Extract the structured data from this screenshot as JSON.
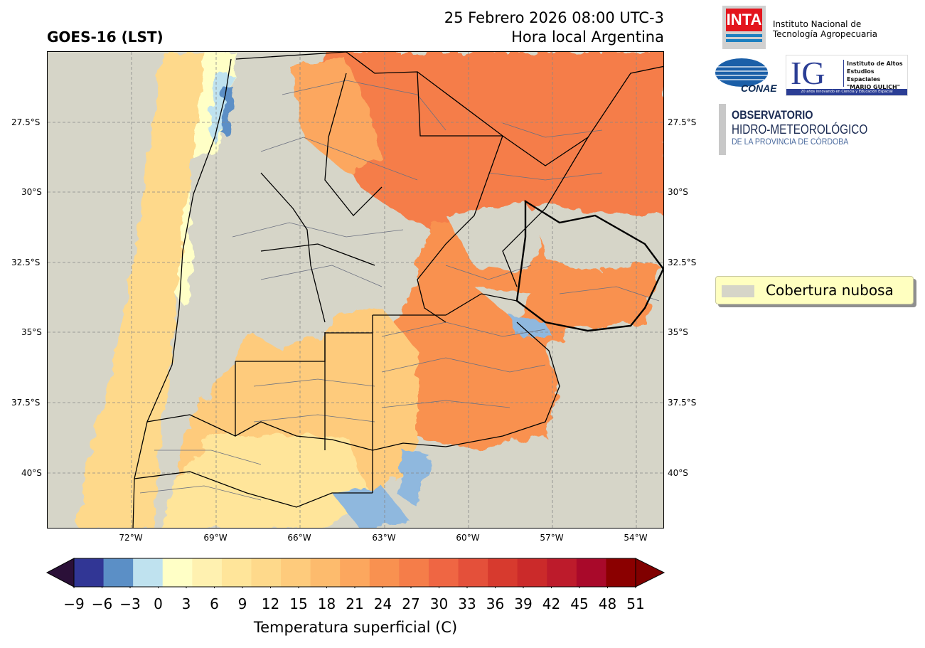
{
  "header": {
    "title": "GOES-16 (LST)",
    "date_line": "25 Febrero 2026 08:00 UTC-3",
    "tz_line": "Hora local Argentina"
  },
  "map": {
    "lat_labels": [
      "27.5°S",
      "30°S",
      "32.5°S",
      "35°S",
      "37.5°S",
      "40°S"
    ],
    "lon_labels": [
      "72°W",
      "69°W",
      "66°W",
      "63°W",
      "60°W",
      "57°W",
      "54°W"
    ],
    "cloud_color": "#d6d5c8"
  },
  "legend": {
    "label": "Cobertura nubosa"
  },
  "colorbar": {
    "label": "Temperatura superficial (C)",
    "ticks": [
      "−9",
      "−6",
      "−3",
      "0",
      "3",
      "6",
      "9",
      "12",
      "15",
      "18",
      "21",
      "24",
      "27",
      "30",
      "33",
      "36",
      "39",
      "42",
      "45",
      "48",
      "51"
    ],
    "colors": [
      "#313695",
      "#5b8fc6",
      "#bfe2ef",
      "#ffffc6",
      "#fff1b0",
      "#ffe59a",
      "#fed98b",
      "#fecb7c",
      "#fdbb6d",
      "#fca75e",
      "#f99150",
      "#f57d49",
      "#ef6643",
      "#e4503a",
      "#d73a2e",
      "#cb2a2a",
      "#bd1b2b",
      "#a9092a",
      "#8b0000"
    ],
    "under_color": "#2b1038",
    "over_color": "#800000"
  },
  "logos": {
    "inta_mark": "INTA",
    "inta_line1": "Instituto Nacional de",
    "inta_line2": "Tecnología Agropecuaria",
    "conae": "CONAE",
    "ig_mark": "IG",
    "ig_line1": "Instituto de Altos",
    "ig_line2": "Estudios Espaciales",
    "ig_line3": "\"MARIO GULICH\"",
    "ig_banner": "20 años innovando en Ciencia y Educación Espacial",
    "obs_line1": "OBSERVATORIO",
    "obs_line2": "HIDRO-METEOROLÓGICO",
    "obs_line3": "DE LA PROVINCIA DE CÓRDOBA"
  }
}
